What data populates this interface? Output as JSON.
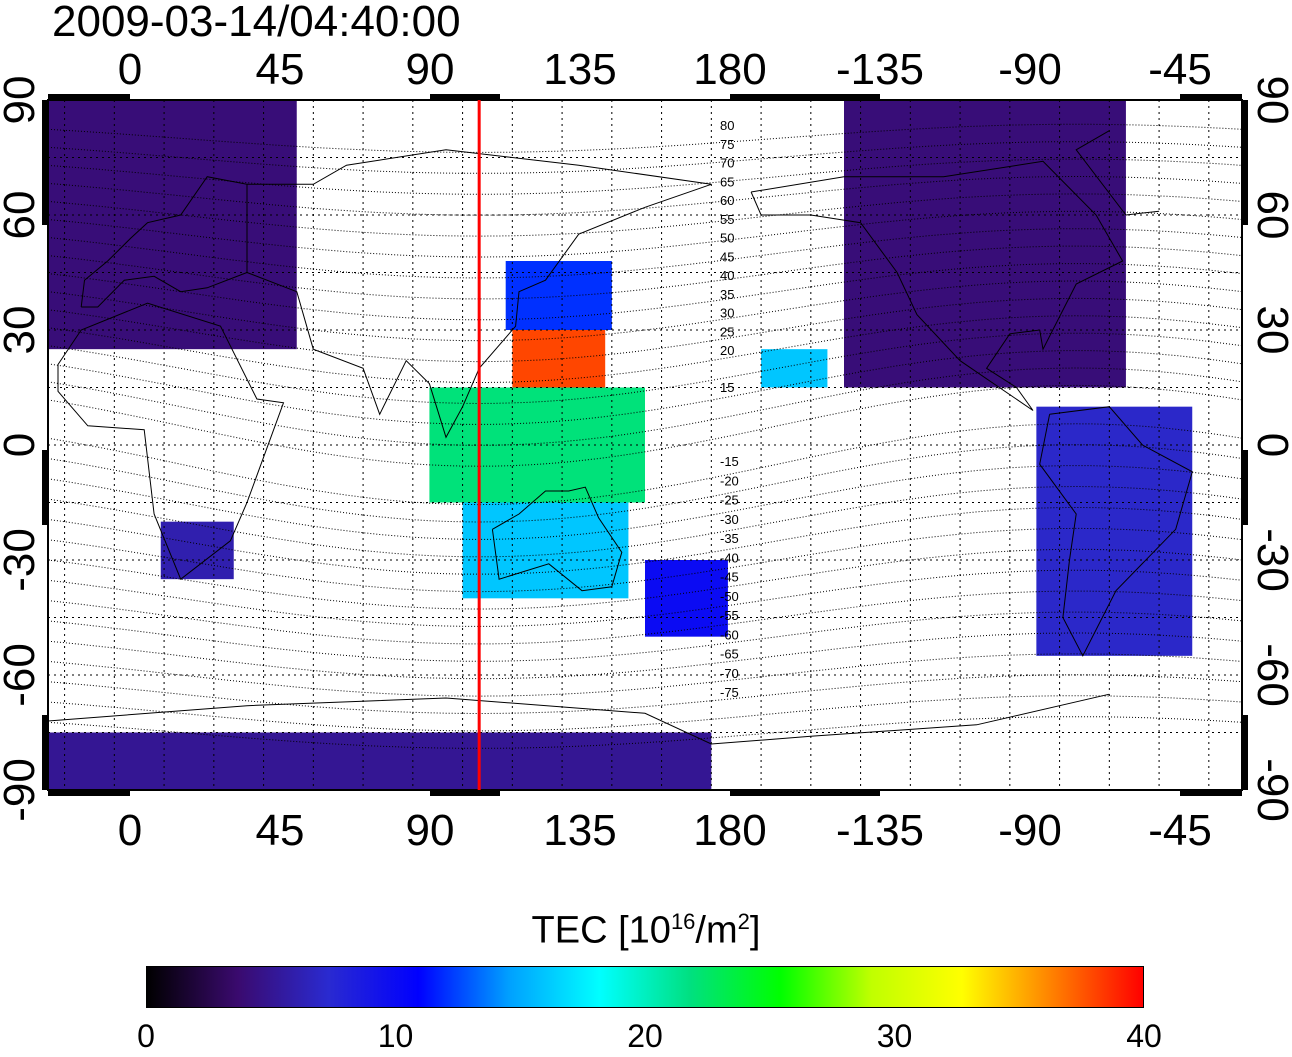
{
  "timestamp": "2009-03-14/04:40:00",
  "map": {
    "top_lon_labels": [
      "0",
      "45",
      "90",
      "135",
      "180",
      "-135",
      "-90",
      "-45"
    ],
    "bottom_lon_labels": [
      "0",
      "45",
      "90",
      "135",
      "180",
      "-135",
      "-90",
      "-45"
    ],
    "left_lat_labels": [
      "90",
      "60",
      "30",
      "0",
      "-30",
      "-60",
      "-90"
    ],
    "right_lat_labels": [
      "90",
      "60",
      "30",
      "0",
      "-30",
      "-60",
      "-90"
    ],
    "contour_labels_north": [
      "80",
      "75",
      "70",
      "65",
      "60",
      "55",
      "50",
      "45",
      "40",
      "35",
      "30",
      "25",
      "20",
      "15"
    ],
    "contour_labels_south": [
      "-15",
      "-20",
      "-25",
      "-30",
      "-35",
      "-40",
      "-45",
      "-50",
      "-55",
      "-60",
      "-65",
      "-70",
      "-75"
    ],
    "meridian_marker_lon": 110,
    "marker_color": "#ff0000"
  },
  "colorbar": {
    "title_main": "TEC  [10",
    "title_exp1": "16",
    "title_mid": "/m",
    "title_exp2": "2",
    "title_end": "]",
    "ticks": [
      "0",
      "10",
      "20",
      "30",
      "40"
    ],
    "range": [
      0,
      40
    ],
    "colors": [
      "#000000",
      "#3a0a6e",
      "#2a2ad0",
      "#0000ff",
      "#00a0ff",
      "#00ffff",
      "#00e080",
      "#00ff00",
      "#c0ff00",
      "#ffff00",
      "#ff8000",
      "#ff0000"
    ]
  },
  "tec_patches": [
    {
      "region": "europe-asia-north",
      "lon": [
        -20,
        55
      ],
      "lat": [
        25,
        90
      ],
      "tec": 4
    },
    {
      "region": "north-america",
      "lon": [
        -140,
        -55
      ],
      "lat": [
        15,
        90
      ],
      "tec": 4
    },
    {
      "region": "south-america",
      "lon": [
        -82,
        -35
      ],
      "lat": [
        -55,
        10
      ],
      "tec": 7
    },
    {
      "region": "east-asia-peak",
      "lon": [
        120,
        148
      ],
      "lat": [
        15,
        30
      ],
      "tec": 38
    },
    {
      "region": "east-asia",
      "lon": [
        118,
        150
      ],
      "lat": [
        30,
        48
      ],
      "tec": 12
    },
    {
      "region": "maritime-asia",
      "lon": [
        95,
        160
      ],
      "lat": [
        -15,
        15
      ],
      "tec": 22
    },
    {
      "region": "australia",
      "lon": [
        105,
        155
      ],
      "lat": [
        -40,
        -15
      ],
      "tec": 16
    },
    {
      "region": "new-zealand",
      "lon": [
        160,
        185
      ],
      "lat": [
        -50,
        -30
      ],
      "tec": 10
    },
    {
      "region": "antarctica",
      "lon": [
        -20,
        180
      ],
      "lat": [
        -90,
        -75
      ],
      "tec": 5
    },
    {
      "region": "southern-africa",
      "lon": [
        14,
        36
      ],
      "lat": [
        -35,
        -20
      ],
      "tec": 6
    },
    {
      "region": "pacific-patch",
      "lon": [
        195,
        215
      ],
      "lat": [
        15,
        25
      ],
      "tec": 16
    }
  ]
}
